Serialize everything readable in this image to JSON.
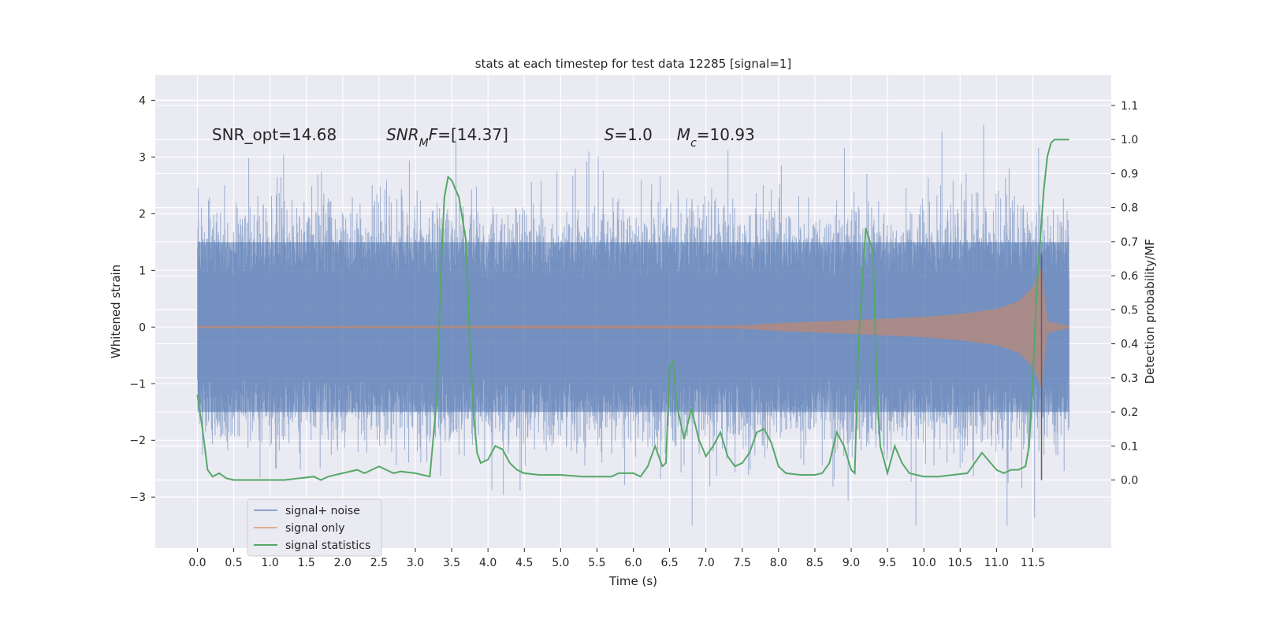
{
  "chart_data": {
    "type": "line",
    "title": "stats at each timestep for test data 12285 [signal=1]",
    "xlabel": "Time (s)",
    "ylabel": "Whitened strain",
    "ylabel_right": "Detection probability/MF",
    "xlim": [
      -0.58,
      12.58
    ],
    "ylim": [
      -3.9,
      4.45
    ],
    "ylim_right": [
      -0.2,
      1.19
    ],
    "x_ticks": [
      0.0,
      0.5,
      1.0,
      1.5,
      2.0,
      2.5,
      3.0,
      3.5,
      4.0,
      4.5,
      5.0,
      5.5,
      6.0,
      6.5,
      7.0,
      7.5,
      8.0,
      8.5,
      9.0,
      9.5,
      10.0,
      10.5,
      11.0,
      11.5
    ],
    "x_tick_labels": [
      "0.0",
      "0.5",
      "1.0",
      "1.5",
      "2.0",
      "2.5",
      "3.0",
      "3.5",
      "4.0",
      "4.5",
      "5.0",
      "5.5",
      "6.0",
      "6.5",
      "7.0",
      "7.5",
      "8.0",
      "8.5",
      "9.0",
      "9.5",
      "10.0",
      "10.5",
      "11.0",
      "11.5"
    ],
    "y_ticks": [
      -3,
      -2,
      -1,
      0,
      1,
      2,
      3,
      4
    ],
    "y_tick_labels": [
      "−3",
      "−2",
      "−1",
      "0",
      "1",
      "2",
      "3",
      "4"
    ],
    "y_right_ticks": [
      0.0,
      0.1,
      0.2,
      0.3,
      0.4,
      0.5,
      0.6,
      0.7,
      0.8,
      0.9,
      1.0,
      1.1
    ],
    "y_right_tick_labels": [
      "0.0",
      "0.1",
      "0.2",
      "0.3",
      "0.4",
      "0.5",
      "0.6",
      "0.7",
      "0.8",
      "0.9",
      "1.0",
      "1.1"
    ],
    "grid": true,
    "legend_position": "lower-left",
    "annotations": [
      {
        "parts": [
          {
            "t": "SNR_opt=14.68"
          }
        ],
        "x": 0.2,
        "y": 3.3
      },
      {
        "parts": [
          {
            "t": "SNR",
            "i": true
          },
          {
            "t": "M",
            "i": true,
            "sub": true
          },
          {
            "t": "F",
            "i": true
          },
          {
            "t": "=[14.37]"
          }
        ],
        "x": 2.6,
        "y": 3.3
      },
      {
        "parts": [
          {
            "t": "S",
            "i": true
          },
          {
            "t": "=1.0"
          }
        ],
        "x": 5.6,
        "y": 3.3
      },
      {
        "parts": [
          {
            "t": "M",
            "i": true
          },
          {
            "t": "c",
            "i": true,
            "sub": true
          },
          {
            "t": "=10.93"
          }
        ],
        "x": 6.6,
        "y": 3.3
      }
    ],
    "series": [
      {
        "name": "signal+ noise",
        "color": "#4c72b0",
        "axis": "left",
        "style": "noise",
        "x_range": [
          0.0,
          12.0
        ],
        "band": [
          -1.5,
          1.5
        ],
        "peak_range": [
          -3.5,
          4.1
        ]
      },
      {
        "name": "signal only",
        "color": "#dd8452",
        "axis": "left",
        "style": "chirp",
        "x_range": [
          0.0,
          12.0
        ],
        "merger_time": 11.62,
        "envelope": [
          [
            0.0,
            0.02
          ],
          [
            7.5,
            0.03
          ],
          [
            8.0,
            0.07
          ],
          [
            9.0,
            0.12
          ],
          [
            10.0,
            0.18
          ],
          [
            10.5,
            0.23
          ],
          [
            11.0,
            0.32
          ],
          [
            11.3,
            0.45
          ],
          [
            11.5,
            0.7
          ],
          [
            11.62,
            1.1
          ],
          [
            11.7,
            0.1
          ],
          [
            12.0,
            0.02
          ]
        ],
        "merger_dip": -2.7
      },
      {
        "name": "signal statistics",
        "color": "#55a868",
        "axis": "right",
        "style": "line",
        "x": [
          0.0,
          0.07,
          0.14,
          0.21,
          0.3,
          0.4,
          0.5,
          0.6,
          0.8,
          1.0,
          1.2,
          1.4,
          1.6,
          1.7,
          1.8,
          2.0,
          2.2,
          2.3,
          2.4,
          2.5,
          2.6,
          2.7,
          2.8,
          3.0,
          3.2,
          3.3,
          3.35,
          3.4,
          3.45,
          3.5,
          3.6,
          3.7,
          3.75,
          3.8,
          3.85,
          3.9,
          4.0,
          4.1,
          4.2,
          4.3,
          4.4,
          4.5,
          4.7,
          5.0,
          5.3,
          5.5,
          5.7,
          5.8,
          6.0,
          6.1,
          6.2,
          6.3,
          6.35,
          6.4,
          6.45,
          6.5,
          6.55,
          6.6,
          6.7,
          6.8,
          6.9,
          7.0,
          7.1,
          7.2,
          7.3,
          7.4,
          7.5,
          7.6,
          7.7,
          7.8,
          7.9,
          8.0,
          8.1,
          8.3,
          8.5,
          8.6,
          8.7,
          8.8,
          8.9,
          9.0,
          9.05,
          9.1,
          9.2,
          9.3,
          9.35,
          9.4,
          9.5,
          9.6,
          9.7,
          9.8,
          10.0,
          10.2,
          10.4,
          10.6,
          10.8,
          11.0,
          11.1,
          11.2,
          11.3,
          11.4,
          11.45,
          11.5,
          11.55,
          11.6,
          11.65,
          11.7,
          11.75,
          11.8,
          11.85,
          11.9,
          12.0
        ],
        "y": [
          0.25,
          0.15,
          0.03,
          0.01,
          0.02,
          0.005,
          0.0,
          0.0,
          0.0,
          0.0,
          0.0,
          0.005,
          0.01,
          0.0,
          0.01,
          0.02,
          0.03,
          0.02,
          0.03,
          0.04,
          0.03,
          0.02,
          0.025,
          0.02,
          0.01,
          0.25,
          0.6,
          0.83,
          0.89,
          0.88,
          0.83,
          0.7,
          0.4,
          0.2,
          0.08,
          0.05,
          0.06,
          0.1,
          0.09,
          0.05,
          0.03,
          0.02,
          0.015,
          0.015,
          0.01,
          0.01,
          0.01,
          0.02,
          0.02,
          0.01,
          0.04,
          0.1,
          0.07,
          0.04,
          0.05,
          0.33,
          0.35,
          0.22,
          0.12,
          0.21,
          0.12,
          0.07,
          0.1,
          0.14,
          0.07,
          0.04,
          0.05,
          0.08,
          0.14,
          0.15,
          0.11,
          0.04,
          0.02,
          0.015,
          0.015,
          0.02,
          0.05,
          0.14,
          0.1,
          0.03,
          0.02,
          0.4,
          0.74,
          0.67,
          0.3,
          0.1,
          0.02,
          0.1,
          0.05,
          0.02,
          0.01,
          0.01,
          0.015,
          0.02,
          0.08,
          0.03,
          0.02,
          0.03,
          0.03,
          0.04,
          0.1,
          0.3,
          0.55,
          0.7,
          0.85,
          0.95,
          0.99,
          1.0,
          1.0,
          1.0,
          1.0
        ]
      }
    ]
  }
}
